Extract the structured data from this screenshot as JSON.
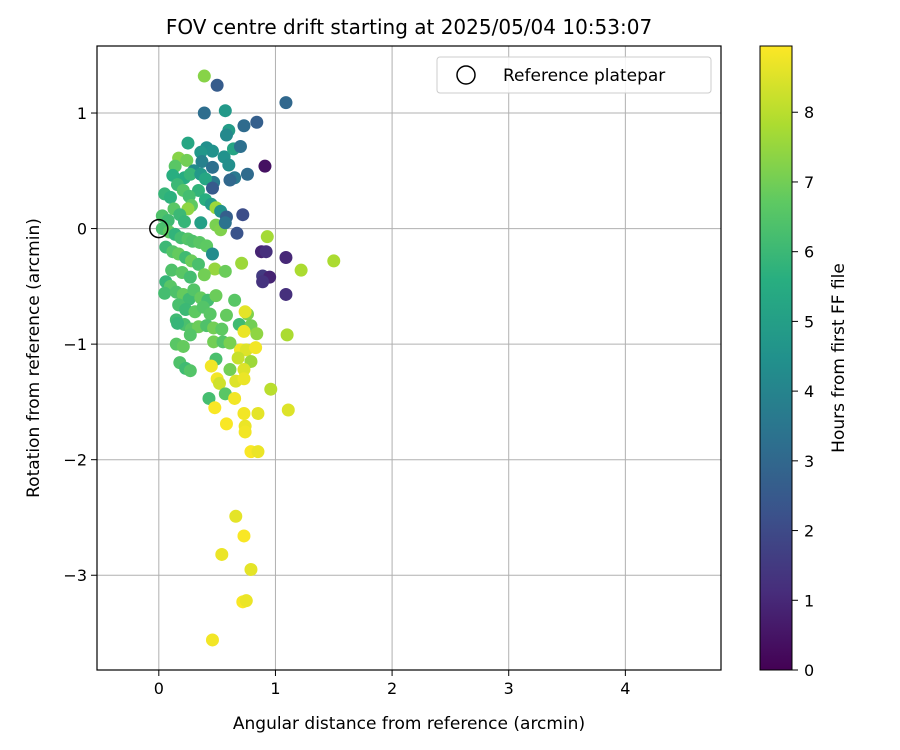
{
  "chart_data": {
    "type": "scatter",
    "title": "FOV centre drift starting at 2025/05/04 10:53:07",
    "xlabel": "Angular distance from reference (arcmin)",
    "ylabel": "Rotation from reference (arcmin)",
    "colorbar_label": "Hours from first FF file",
    "xlim": [
      -0.53,
      4.82
    ],
    "ylim": [
      -3.82,
      1.58
    ],
    "xticks": [
      0,
      1,
      2,
      3,
      4
    ],
    "yticks": [
      -3,
      -2,
      -1,
      0,
      1
    ],
    "colorbar_range": [
      0,
      8.95
    ],
    "colorbar_ticks": [
      0,
      1,
      2,
      3,
      4,
      5,
      6,
      7,
      8
    ],
    "colormap": "viridis",
    "grid": true,
    "legend": {
      "position": "top-right",
      "entries": [
        "Reference platepar"
      ]
    },
    "reference_point": {
      "x": 0,
      "y": 0,
      "label": "Reference platepar"
    },
    "points": [
      {
        "x": 0.39,
        "y": 1.32,
        "h": 7.3
      },
      {
        "x": 0.5,
        "y": 1.24,
        "h": 2.6
      },
      {
        "x": 1.09,
        "y": 1.09,
        "h": 3.0
      },
      {
        "x": 0.39,
        "y": 1.0,
        "h": 3.2
      },
      {
        "x": 0.57,
        "y": 1.02,
        "h": 4.8
      },
      {
        "x": 0.73,
        "y": 0.89,
        "h": 3.1
      },
      {
        "x": 0.84,
        "y": 0.92,
        "h": 2.7
      },
      {
        "x": 0.25,
        "y": 0.74,
        "h": 5.3
      },
      {
        "x": 0.6,
        "y": 0.85,
        "h": 4.9
      },
      {
        "x": 0.58,
        "y": 0.81,
        "h": 4.2
      },
      {
        "x": 0.41,
        "y": 0.7,
        "h": 4.4
      },
      {
        "x": 0.46,
        "y": 0.67,
        "h": 4.5
      },
      {
        "x": 0.36,
        "y": 0.66,
        "h": 4.7
      },
      {
        "x": 0.56,
        "y": 0.62,
        "h": 4.5
      },
      {
        "x": 0.64,
        "y": 0.69,
        "h": 5.2
      },
      {
        "x": 0.7,
        "y": 0.71,
        "h": 3.3
      },
      {
        "x": 0.91,
        "y": 0.54,
        "h": 0.4
      },
      {
        "x": 0.17,
        "y": 0.61,
        "h": 7.3
      },
      {
        "x": 0.24,
        "y": 0.59,
        "h": 7.0
      },
      {
        "x": 0.14,
        "y": 0.54,
        "h": 6.6
      },
      {
        "x": 0.37,
        "y": 0.58,
        "h": 3.9
      },
      {
        "x": 0.3,
        "y": 0.5,
        "h": 4.3
      },
      {
        "x": 0.46,
        "y": 0.53,
        "h": 3.3
      },
      {
        "x": 0.6,
        "y": 0.55,
        "h": 4.4
      },
      {
        "x": 0.65,
        "y": 0.44,
        "h": 3.6
      },
      {
        "x": 0.76,
        "y": 0.47,
        "h": 3.1
      },
      {
        "x": 0.61,
        "y": 0.42,
        "h": 3.0
      },
      {
        "x": 0.12,
        "y": 0.46,
        "h": 5.6
      },
      {
        "x": 0.22,
        "y": 0.44,
        "h": 5.5
      },
      {
        "x": 0.27,
        "y": 0.47,
        "h": 5.9
      },
      {
        "x": 0.36,
        "y": 0.47,
        "h": 4.8
      },
      {
        "x": 0.47,
        "y": 0.4,
        "h": 3.6
      },
      {
        "x": 0.4,
        "y": 0.43,
        "h": 5.3
      },
      {
        "x": 0.46,
        "y": 0.35,
        "h": 2.5
      },
      {
        "x": 0.34,
        "y": 0.33,
        "h": 5.8
      },
      {
        "x": 0.16,
        "y": 0.38,
        "h": 6.0
      },
      {
        "x": 0.21,
        "y": 0.33,
        "h": 6.5
      },
      {
        "x": 0.26,
        "y": 0.28,
        "h": 6.2
      },
      {
        "x": 0.05,
        "y": 0.3,
        "h": 5.9
      },
      {
        "x": 0.1,
        "y": 0.27,
        "h": 5.7
      },
      {
        "x": 0.28,
        "y": 0.2,
        "h": 6.7
      },
      {
        "x": 0.4,
        "y": 0.25,
        "h": 5.6
      },
      {
        "x": 0.45,
        "y": 0.21,
        "h": 4.9
      },
      {
        "x": 0.49,
        "y": 0.18,
        "h": 7.6
      },
      {
        "x": 0.53,
        "y": 0.15,
        "h": 4.5
      },
      {
        "x": 0.58,
        "y": 0.1,
        "h": 2.7
      },
      {
        "x": 0.72,
        "y": 0.12,
        "h": 2.1
      },
      {
        "x": 0.25,
        "y": 0.17,
        "h": 7.4
      },
      {
        "x": 0.13,
        "y": 0.17,
        "h": 6.6
      },
      {
        "x": 0.18,
        "y": 0.12,
        "h": 6.0
      },
      {
        "x": 0.03,
        "y": 0.11,
        "h": 6.4
      },
      {
        "x": 0.08,
        "y": 0.07,
        "h": 6.1
      },
      {
        "x": 0.22,
        "y": 0.06,
        "h": 5.9
      },
      {
        "x": 0.36,
        "y": 0.05,
        "h": 5.0
      },
      {
        "x": 0.49,
        "y": 0.03,
        "h": 7.1
      },
      {
        "x": 0.53,
        "y": -0.01,
        "h": 7.2
      },
      {
        "x": 0.57,
        "y": 0.05,
        "h": 3.4
      },
      {
        "x": 0.67,
        "y": -0.04,
        "h": 2.3
      },
      {
        "x": 0.93,
        "y": -0.07,
        "h": 7.7
      },
      {
        "x": 0.03,
        "y": 0.0,
        "h": 6.3
      },
      {
        "x": 0.09,
        "y": -0.03,
        "h": 6.7
      },
      {
        "x": 0.14,
        "y": -0.05,
        "h": 5.8
      },
      {
        "x": 0.19,
        "y": -0.08,
        "h": 6.2
      },
      {
        "x": 0.25,
        "y": -0.09,
        "h": 6.5
      },
      {
        "x": 0.29,
        "y": -0.11,
        "h": 6.4
      },
      {
        "x": 0.35,
        "y": -0.12,
        "h": 6.6
      },
      {
        "x": 0.41,
        "y": -0.15,
        "h": 6.7
      },
      {
        "x": 0.88,
        "y": -0.2,
        "h": 0.9
      },
      {
        "x": 0.92,
        "y": -0.2,
        "h": 1.2
      },
      {
        "x": 1.09,
        "y": -0.25,
        "h": 1.0
      },
      {
        "x": 1.5,
        "y": -0.28,
        "h": 7.8
      },
      {
        "x": 1.22,
        "y": -0.36,
        "h": 7.8
      },
      {
        "x": 0.06,
        "y": -0.16,
        "h": 6.0
      },
      {
        "x": 0.12,
        "y": -0.2,
        "h": 6.5
      },
      {
        "x": 0.17,
        "y": -0.22,
        "h": 6.8
      },
      {
        "x": 0.23,
        "y": -0.25,
        "h": 6.1
      },
      {
        "x": 0.28,
        "y": -0.28,
        "h": 6.9
      },
      {
        "x": 0.34,
        "y": -0.31,
        "h": 6.3
      },
      {
        "x": 0.46,
        "y": -0.22,
        "h": 4.3
      },
      {
        "x": 0.48,
        "y": -0.35,
        "h": 7.5
      },
      {
        "x": 0.57,
        "y": -0.37,
        "h": 6.9
      },
      {
        "x": 0.71,
        "y": -0.3,
        "h": 7.6
      },
      {
        "x": 0.11,
        "y": -0.36,
        "h": 6.4
      },
      {
        "x": 0.2,
        "y": -0.38,
        "h": 6.6
      },
      {
        "x": 0.27,
        "y": -0.42,
        "h": 6.2
      },
      {
        "x": 0.39,
        "y": -0.4,
        "h": 7.0
      },
      {
        "x": 0.89,
        "y": -0.41,
        "h": 1.5
      },
      {
        "x": 0.95,
        "y": -0.42,
        "h": 0.9
      },
      {
        "x": 0.89,
        "y": -0.46,
        "h": 1.3
      },
      {
        "x": 0.06,
        "y": -0.46,
        "h": 5.9
      },
      {
        "x": 0.1,
        "y": -0.5,
        "h": 6.6
      },
      {
        "x": 0.05,
        "y": -0.56,
        "h": 6.2
      },
      {
        "x": 0.15,
        "y": -0.55,
        "h": 6.4
      },
      {
        "x": 0.21,
        "y": -0.57,
        "h": 6.8
      },
      {
        "x": 0.26,
        "y": -0.61,
        "h": 6.1
      },
      {
        "x": 0.3,
        "y": -0.53,
        "h": 6.5
      },
      {
        "x": 0.36,
        "y": -0.6,
        "h": 6.8
      },
      {
        "x": 0.42,
        "y": -0.62,
        "h": 6.2
      },
      {
        "x": 0.49,
        "y": -0.58,
        "h": 6.9
      },
      {
        "x": 1.09,
        "y": -0.57,
        "h": 1.2
      },
      {
        "x": 0.65,
        "y": -0.62,
        "h": 6.6
      },
      {
        "x": 0.17,
        "y": -0.66,
        "h": 6.3
      },
      {
        "x": 0.23,
        "y": -0.7,
        "h": 6.0
      },
      {
        "x": 0.31,
        "y": -0.72,
        "h": 6.7
      },
      {
        "x": 0.38,
        "y": -0.68,
        "h": 6.5
      },
      {
        "x": 0.44,
        "y": -0.74,
        "h": 6.6
      },
      {
        "x": 0.58,
        "y": -0.75,
        "h": 6.8
      },
      {
        "x": 0.76,
        "y": -0.74,
        "h": 7.2
      },
      {
        "x": 0.74,
        "y": -0.72,
        "h": 8.6
      },
      {
        "x": 0.15,
        "y": -0.79,
        "h": 6.1
      },
      {
        "x": 0.22,
        "y": -0.83,
        "h": 6.3
      },
      {
        "x": 0.28,
        "y": -0.87,
        "h": 6.6
      },
      {
        "x": 0.34,
        "y": -0.85,
        "h": 6.9
      },
      {
        "x": 0.41,
        "y": -0.84,
        "h": 6.4
      },
      {
        "x": 0.47,
        "y": -0.86,
        "h": 7.0
      },
      {
        "x": 0.54,
        "y": -0.87,
        "h": 6.7
      },
      {
        "x": 0.69,
        "y": -0.83,
        "h": 6.1
      },
      {
        "x": 0.79,
        "y": -0.84,
        "h": 7.0
      },
      {
        "x": 0.16,
        "y": -0.82,
        "h": 5.9
      },
      {
        "x": 0.27,
        "y": -0.92,
        "h": 6.5
      },
      {
        "x": 0.84,
        "y": -0.91,
        "h": 7.4
      },
      {
        "x": 0.73,
        "y": -0.89,
        "h": 8.7
      },
      {
        "x": 1.1,
        "y": -0.92,
        "h": 7.8
      },
      {
        "x": 0.15,
        "y": -1.0,
        "h": 6.6
      },
      {
        "x": 0.21,
        "y": -1.02,
        "h": 6.8
      },
      {
        "x": 0.47,
        "y": -0.98,
        "h": 7.0
      },
      {
        "x": 0.55,
        "y": -0.98,
        "h": 6.5
      },
      {
        "x": 0.61,
        "y": -0.99,
        "h": 7.1
      },
      {
        "x": 0.7,
        "y": -1.05,
        "h": 8.8
      },
      {
        "x": 0.75,
        "y": -1.05,
        "h": 8.5
      },
      {
        "x": 0.83,
        "y": -1.03,
        "h": 8.8
      },
      {
        "x": 0.68,
        "y": -1.12,
        "h": 8.2
      },
      {
        "x": 0.79,
        "y": -1.15,
        "h": 7.6
      },
      {
        "x": 0.49,
        "y": -1.13,
        "h": 6.3
      },
      {
        "x": 0.18,
        "y": -1.16,
        "h": 6.4
      },
      {
        "x": 0.23,
        "y": -1.21,
        "h": 6.1
      },
      {
        "x": 0.27,
        "y": -1.23,
        "h": 6.5
      },
      {
        "x": 0.45,
        "y": -1.19,
        "h": 8.8
      },
      {
        "x": 0.61,
        "y": -1.22,
        "h": 7.0
      },
      {
        "x": 0.73,
        "y": -1.22,
        "h": 8.5
      },
      {
        "x": 0.5,
        "y": -1.3,
        "h": 8.8
      },
      {
        "x": 0.52,
        "y": -1.34,
        "h": 8.3
      },
      {
        "x": 0.66,
        "y": -1.32,
        "h": 8.5
      },
      {
        "x": 0.73,
        "y": -1.3,
        "h": 8.7
      },
      {
        "x": 0.96,
        "y": -1.39,
        "h": 8.0
      },
      {
        "x": 0.57,
        "y": -1.43,
        "h": 6.6
      },
      {
        "x": 0.43,
        "y": -1.47,
        "h": 6.2
      },
      {
        "x": 0.65,
        "y": -1.47,
        "h": 8.8
      },
      {
        "x": 0.48,
        "y": -1.55,
        "h": 8.9
      },
      {
        "x": 0.73,
        "y": -1.6,
        "h": 8.8
      },
      {
        "x": 0.85,
        "y": -1.6,
        "h": 8.6
      },
      {
        "x": 1.11,
        "y": -1.57,
        "h": 8.5
      },
      {
        "x": 0.58,
        "y": -1.69,
        "h": 8.9
      },
      {
        "x": 0.74,
        "y": -1.71,
        "h": 8.7
      },
      {
        "x": 0.74,
        "y": -1.76,
        "h": 8.8
      },
      {
        "x": 0.79,
        "y": -1.93,
        "h": 8.9
      },
      {
        "x": 0.85,
        "y": -1.93,
        "h": 8.7
      },
      {
        "x": 0.66,
        "y": -2.49,
        "h": 8.6
      },
      {
        "x": 0.73,
        "y": -2.66,
        "h": 8.9
      },
      {
        "x": 0.54,
        "y": -2.82,
        "h": 8.7
      },
      {
        "x": 0.79,
        "y": -2.95,
        "h": 8.6
      },
      {
        "x": 0.72,
        "y": -3.23,
        "h": 8.9
      },
      {
        "x": 0.75,
        "y": -3.22,
        "h": 8.7
      },
      {
        "x": 0.46,
        "y": -3.56,
        "h": 8.8
      }
    ]
  }
}
